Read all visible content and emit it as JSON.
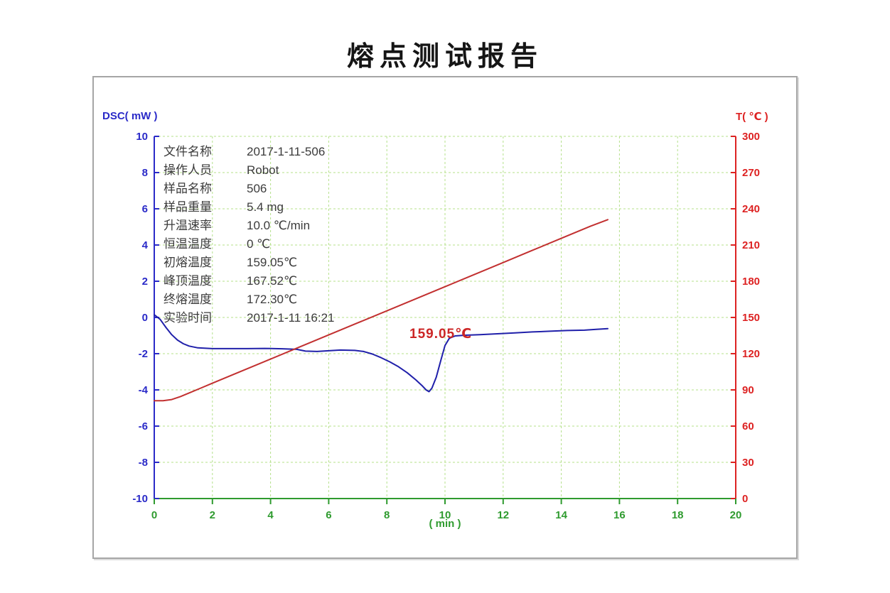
{
  "title": "熔点测试报告",
  "info_panel": {
    "rows": [
      {
        "label": "文件名称",
        "value": "2017-1-11-506"
      },
      {
        "label": "操作人员",
        "value": "Robot"
      },
      {
        "label": "样品名称",
        "value": "506"
      },
      {
        "label": "样品重量",
        "value": "5.4 mg"
      },
      {
        "label": "升温速率",
        "value": "10.0 ℃/min"
      },
      {
        "label": "恒温温度",
        "value": "0 ℃"
      },
      {
        "label": "初熔温度",
        "value": "159.05℃"
      },
      {
        "label": "峰顶温度",
        "value": "167.52℃"
      },
      {
        "label": "终熔温度",
        "value": "172.30℃"
      },
      {
        "label": "实验时间",
        "value": "2017-1-11 16:21"
      }
    ]
  },
  "chart_data": {
    "type": "line",
    "title": "熔点测试报告",
    "x_axis": {
      "label": "( min )",
      "range": [
        0,
        20
      ],
      "ticks": [
        0,
        2,
        4,
        6,
        8,
        10,
        12,
        14,
        16,
        18,
        20
      ],
      "color": "#2f9b2f",
      "grid": true
    },
    "left_axis": {
      "label": "DSC( mW )",
      "range": [
        -10,
        10
      ],
      "ticks": [
        10,
        8,
        6,
        4,
        2,
        0,
        -2,
        -4,
        -6,
        -8,
        -10
      ],
      "color": "#2a2ac8",
      "grid": true
    },
    "right_axis": {
      "label": "T( ℃ )",
      "range": [
        0,
        300
      ],
      "ticks": [
        300,
        270,
        240,
        210,
        180,
        150,
        120,
        90,
        60,
        30,
        0
      ],
      "color": "#dd2222"
    },
    "grid": {
      "color": "#b4e08a",
      "dashed": true
    },
    "annotation": {
      "text": "159.05℃",
      "color": "#cc2626"
    },
    "series": [
      {
        "name": "DSC",
        "axis": "left",
        "color": "#2020aa",
        "points": [
          [
            0,
            0.15
          ],
          [
            0.2,
            -0.1
          ],
          [
            0.4,
            -0.55
          ],
          [
            0.6,
            -0.95
          ],
          [
            0.8,
            -1.25
          ],
          [
            1.0,
            -1.45
          ],
          [
            1.2,
            -1.58
          ],
          [
            1.5,
            -1.68
          ],
          [
            2.0,
            -1.72
          ],
          [
            2.6,
            -1.72
          ],
          [
            3.2,
            -1.72
          ],
          [
            3.8,
            -1.71
          ],
          [
            4.4,
            -1.73
          ],
          [
            4.9,
            -1.76
          ],
          [
            5.2,
            -1.86
          ],
          [
            5.6,
            -1.88
          ],
          [
            6.0,
            -1.84
          ],
          [
            6.4,
            -1.8
          ],
          [
            6.9,
            -1.82
          ],
          [
            7.2,
            -1.88
          ],
          [
            7.5,
            -2.02
          ],
          [
            7.8,
            -2.22
          ],
          [
            8.1,
            -2.45
          ],
          [
            8.4,
            -2.72
          ],
          [
            8.7,
            -3.05
          ],
          [
            9.0,
            -3.45
          ],
          [
            9.2,
            -3.75
          ],
          [
            9.35,
            -4.0
          ],
          [
            9.45,
            -4.1
          ],
          [
            9.55,
            -3.9
          ],
          [
            9.7,
            -3.3
          ],
          [
            9.85,
            -2.4
          ],
          [
            10.0,
            -1.55
          ],
          [
            10.15,
            -1.15
          ],
          [
            10.35,
            -1.02
          ],
          [
            10.7,
            -0.98
          ],
          [
            11.2,
            -0.95
          ],
          [
            11.8,
            -0.9
          ],
          [
            12.4,
            -0.85
          ],
          [
            13.0,
            -0.8
          ],
          [
            13.6,
            -0.76
          ],
          [
            14.2,
            -0.72
          ],
          [
            14.8,
            -0.7
          ],
          [
            15.2,
            -0.66
          ],
          [
            15.6,
            -0.62
          ]
        ]
      },
      {
        "name": "T",
        "axis": "right",
        "color": "#c23030",
        "points": [
          [
            0,
            81
          ],
          [
            0.3,
            81
          ],
          [
            0.6,
            82
          ],
          [
            0.9,
            84.5
          ],
          [
            1.2,
            87.5
          ],
          [
            1.6,
            91.5
          ],
          [
            2.0,
            95.5
          ],
          [
            3.0,
            105.5
          ],
          [
            4.0,
            115.5
          ],
          [
            5.0,
            125.5
          ],
          [
            6.0,
            135.5
          ],
          [
            7.0,
            145.5
          ],
          [
            8.0,
            155.5
          ],
          [
            9.0,
            165.5
          ],
          [
            10.0,
            175.5
          ],
          [
            11.0,
            185.5
          ],
          [
            12.0,
            195.5
          ],
          [
            13.0,
            205.5
          ],
          [
            14.0,
            215.5
          ],
          [
            15.0,
            225.5
          ],
          [
            15.6,
            231
          ]
        ]
      }
    ]
  }
}
